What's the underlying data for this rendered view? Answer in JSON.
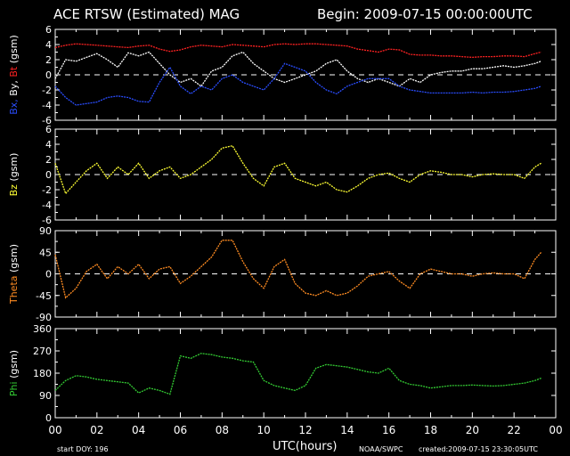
{
  "title": "ACE RTSW (Estimated) MAG",
  "begin": "Begin: 2009-07-15 00:00:00UTC",
  "footer": {
    "start_doy": "start DOY: 196",
    "utc_label": "UTC(hours)",
    "noaa": "NOAA/SWPC",
    "created": "created:2009-07-15 23:30:05UTC"
  },
  "colors": {
    "bx": "#2a4dff",
    "by": "#ffffff",
    "bt": "#ff2222",
    "bz": "#ffff33",
    "theta": "#ff8c22",
    "phi": "#33cc33",
    "axis": "#ffffff"
  },
  "chart_data": [
    {
      "type": "line",
      "ylabel_parts": [
        {
          "text": "Bx,",
          "color": "#2a4dff"
        },
        {
          "text": " By,",
          "color": "#ffffff"
        },
        {
          "text": " Bt",
          "color": "#ff2222"
        },
        {
          "text": " (gsm)",
          "color": "#ffffff"
        }
      ],
      "xlim": [
        0,
        24
      ],
      "ylim": [
        -6,
        6
      ],
      "yticks": [
        -6,
        -4,
        -2,
        0,
        2,
        4,
        6
      ],
      "zero_line": true,
      "x": [
        0,
        0.5,
        1,
        1.5,
        2,
        2.5,
        3,
        3.5,
        4,
        4.5,
        5,
        5.5,
        6,
        6.5,
        7,
        7.5,
        8,
        8.5,
        9,
        9.5,
        10,
        10.5,
        11,
        11.5,
        12,
        12.5,
        13,
        13.5,
        14,
        14.5,
        15,
        15.5,
        16,
        16.5,
        17,
        17.5,
        18,
        18.5,
        19,
        19.5,
        20,
        20.5,
        21,
        21.5,
        22,
        22.5,
        23,
        23.3
      ],
      "series": [
        {
          "name": "Bt",
          "color": "#ff2222",
          "values": [
            3.6,
            3.9,
            4.1,
            4.0,
            3.9,
            3.8,
            3.7,
            3.6,
            3.8,
            3.9,
            3.4,
            3.1,
            3.3,
            3.7,
            3.9,
            3.8,
            3.7,
            4.0,
            3.9,
            3.8,
            3.7,
            4.0,
            4.1,
            4.0,
            4.1,
            4.1,
            4.0,
            3.9,
            3.8,
            3.4,
            3.2,
            3.0,
            3.4,
            3.3,
            2.7,
            2.6,
            2.6,
            2.5,
            2.5,
            2.4,
            2.3,
            2.4,
            2.4,
            2.5,
            2.5,
            2.4,
            2.8,
            3.0
          ]
        },
        {
          "name": "By",
          "color": "#ffffff",
          "values": [
            -0.5,
            2.0,
            1.8,
            2.3,
            2.8,
            2.0,
            1.0,
            2.9,
            2.5,
            3.0,
            1.5,
            0.0,
            -1.0,
            -0.5,
            -1.5,
            0.5,
            1.0,
            2.5,
            3.0,
            1.5,
            0.5,
            -0.5,
            -1.0,
            -0.5,
            0.0,
            0.5,
            1.5,
            2.0,
            0.5,
            -0.5,
            -1.0,
            -0.5,
            -1.0,
            -1.5,
            -0.5,
            -1.0,
            0.0,
            0.3,
            0.5,
            0.5,
            0.8,
            0.8,
            1.0,
            1.2,
            1.0,
            1.2,
            1.5,
            1.8
          ]
        },
        {
          "name": "Bx",
          "color": "#2a4dff",
          "values": [
            -1.5,
            -3.0,
            -4.0,
            -3.8,
            -3.6,
            -3.0,
            -2.8,
            -3.0,
            -3.5,
            -3.6,
            -1.0,
            1.0,
            -1.5,
            -2.5,
            -1.5,
            -2.0,
            -0.5,
            0.0,
            -1.0,
            -1.5,
            -2.0,
            -0.5,
            1.5,
            1.0,
            0.5,
            -1.0,
            -2.0,
            -2.5,
            -1.5,
            -1.0,
            -0.5,
            -0.5,
            -0.5,
            -1.5,
            -2.0,
            -2.2,
            -2.4,
            -2.4,
            -2.4,
            -2.4,
            -2.3,
            -2.4,
            -2.3,
            -2.3,
            -2.2,
            -2.0,
            -1.8,
            -1.5
          ]
        }
      ]
    },
    {
      "type": "line",
      "ylabel_parts": [
        {
          "text": "Bz",
          "color": "#ffff33"
        },
        {
          "text": " (gsm)",
          "color": "#ffffff"
        }
      ],
      "xlim": [
        0,
        24
      ],
      "ylim": [
        -6,
        6
      ],
      "yticks": [
        -6,
        -4,
        -2,
        0,
        2,
        4,
        6
      ],
      "zero_line": true,
      "x": [
        0,
        0.5,
        1,
        1.5,
        2,
        2.5,
        3,
        3.5,
        4,
        4.5,
        5,
        5.5,
        6,
        6.5,
        7,
        7.5,
        8,
        8.5,
        9,
        9.5,
        10,
        10.5,
        11,
        11.5,
        12,
        12.5,
        13,
        13.5,
        14,
        14.5,
        15,
        15.5,
        16,
        16.5,
        17,
        17.5,
        18,
        18.5,
        19,
        19.5,
        20,
        20.5,
        21,
        21.5,
        22,
        22.5,
        23,
        23.3
      ],
      "series": [
        {
          "name": "Bz",
          "color": "#ffff33",
          "values": [
            1.5,
            -2.5,
            -1.0,
            0.5,
            1.5,
            -0.5,
            1.0,
            0.0,
            1.5,
            -0.5,
            0.5,
            1.0,
            -0.5,
            0.0,
            1.0,
            2.0,
            3.5,
            3.8,
            1.5,
            -0.5,
            -1.5,
            1.0,
            1.5,
            -0.5,
            -1.0,
            -1.5,
            -1.0,
            -2.0,
            -2.3,
            -1.5,
            -0.5,
            0.0,
            0.2,
            -0.5,
            -1.0,
            0.0,
            0.5,
            0.3,
            0.0,
            0.0,
            -0.3,
            0.0,
            0.1,
            0.0,
            0.0,
            -0.5,
            1.0,
            1.5
          ]
        }
      ]
    },
    {
      "type": "line",
      "ylabel_parts": [
        {
          "text": "Theta",
          "color": "#ff8c22"
        },
        {
          "text": " (gsm)",
          "color": "#ffffff"
        }
      ],
      "xlim": [
        0,
        24
      ],
      "ylim": [
        -90,
        90
      ],
      "yticks": [
        -90,
        -45,
        0,
        45,
        90
      ],
      "zero_line": true,
      "x": [
        0,
        0.5,
        1,
        1.5,
        2,
        2.5,
        3,
        3.5,
        4,
        4.5,
        5,
        5.5,
        6,
        6.5,
        7,
        7.5,
        8,
        8.5,
        9,
        9.5,
        10,
        10.5,
        11,
        11.5,
        12,
        12.5,
        13,
        13.5,
        14,
        14.5,
        15,
        15.5,
        16,
        16.5,
        17,
        17.5,
        18,
        18.5,
        19,
        19.5,
        20,
        20.5,
        21,
        21.5,
        22,
        22.5,
        23,
        23.3
      ],
      "series": [
        {
          "name": "Theta",
          "color": "#ff8c22",
          "values": [
            40,
            -50,
            -30,
            5,
            20,
            -10,
            15,
            0,
            20,
            -10,
            10,
            15,
            -20,
            -5,
            15,
            35,
            70,
            70,
            25,
            -10,
            -30,
            15,
            30,
            -20,
            -40,
            -45,
            -35,
            -45,
            -40,
            -25,
            -5,
            0,
            5,
            -15,
            -30,
            0,
            10,
            5,
            0,
            0,
            -5,
            0,
            2,
            0,
            0,
            -10,
            30,
            45
          ]
        }
      ]
    },
    {
      "type": "line",
      "ylabel_parts": [
        {
          "text": "Phi",
          "color": "#33cc33"
        },
        {
          "text": " (gsm)",
          "color": "#ffffff"
        }
      ],
      "xlim": [
        0,
        24
      ],
      "ylim": [
        0,
        360
      ],
      "yticks": [
        0,
        90,
        180,
        270,
        360
      ],
      "zero_line": false,
      "x": [
        0,
        0.5,
        1,
        1.5,
        2,
        2.5,
        3,
        3.5,
        4,
        4.5,
        5,
        5.5,
        6,
        6.5,
        7,
        7.5,
        8,
        8.5,
        9,
        9.5,
        10,
        10.5,
        11,
        11.5,
        12,
        12.5,
        13,
        13.5,
        14,
        14.5,
        15,
        15.5,
        16,
        16.5,
        17,
        17.5,
        18,
        18.5,
        19,
        19.5,
        20,
        20.5,
        21,
        21.5,
        22,
        22.5,
        23,
        23.3
      ],
      "series": [
        {
          "name": "Phi",
          "color": "#33cc33",
          "values": [
            110,
            150,
            170,
            165,
            155,
            150,
            145,
            140,
            100,
            120,
            110,
            95,
            250,
            240,
            260,
            255,
            245,
            240,
            230,
            225,
            150,
            130,
            120,
            110,
            130,
            200,
            215,
            210,
            205,
            195,
            185,
            180,
            200,
            150,
            135,
            130,
            120,
            125,
            130,
            130,
            132,
            130,
            128,
            130,
            135,
            140,
            150,
            160
          ]
        }
      ]
    }
  ],
  "xticks": [
    "00",
    "02",
    "04",
    "06",
    "08",
    "10",
    "12",
    "14",
    "16",
    "18",
    "20",
    "22",
    "00"
  ]
}
